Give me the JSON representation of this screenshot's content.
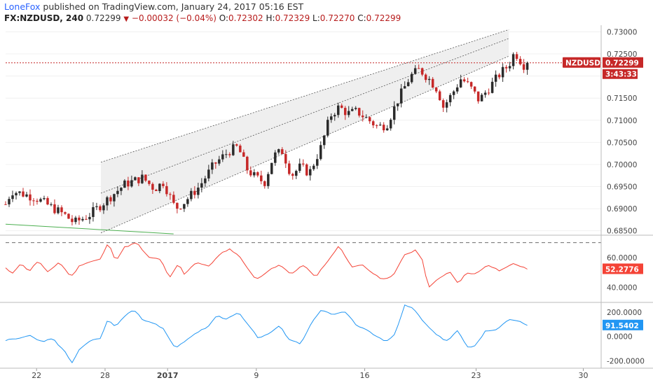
{
  "header": {
    "author": "LoneFox",
    "published_text": "published on TradingView.com, January 24, 2017 05:16 EST",
    "symbol": "FX:NZDUSD, 240",
    "last": "0.72299",
    "change": "−0.00032 (−0.04%)",
    "o_label": "O:",
    "o": "0.72302",
    "h_label": "H:",
    "h": "0.72329",
    "l_label": "L:",
    "l": "0.72270",
    "c_label": "C:",
    "c": "0.72299"
  },
  "colors": {
    "up": "#2b2b2b",
    "down": "#c62828",
    "rsi": "#f44336",
    "cci": "#2196f3",
    "tag_red": "#c62828",
    "tag_blue": "#2196f3",
    "channel_fill": "#efefef"
  },
  "chart_data": [
    {
      "type": "candlestick",
      "symbol": "NZDUSD",
      "ylim": [
        0.684,
        0.7315
      ],
      "yticks": [
        "0.73000",
        "0.72500",
        "0.72000",
        "0.71500",
        "0.71000",
        "0.70500",
        "0.70000",
        "0.69500",
        "0.69000",
        "0.68500"
      ],
      "ytick_values": [
        0.73,
        0.725,
        0.72,
        0.715,
        0.71,
        0.705,
        0.7,
        0.695,
        0.69,
        0.685
      ],
      "xticks": [
        {
          "label": "22",
          "x": 0.052
        },
        {
          "label": "28",
          "x": 0.167
        },
        {
          "label": "2017",
          "x": 0.272
        },
        {
          "label": "9",
          "x": 0.421
        },
        {
          "label": "16",
          "x": 0.603
        },
        {
          "label": "23",
          "x": 0.79
        },
        {
          "label": "30",
          "x": 0.97
        }
      ],
      "last_price": 0.72299,
      "price_label": "NZDUSD",
      "price_tag": "0.72299",
      "countdown": "3:43:33",
      "channel": {
        "x1": 0.16,
        "x2": 0.845,
        "lower": [
          0.6845,
          0.7245
        ],
        "mid": [
          0.6935,
          0.7285
        ],
        "upper": [
          0.7005,
          0.7305
        ]
      },
      "trendline": [
        [
          0.0,
          0.6865
        ],
        [
          0.282,
          0.6843
        ]
      ],
      "anchors": [
        [
          0,
          0.691
        ],
        [
          0.01,
          0.694
        ],
        [
          0.025,
          0.6935
        ],
        [
          0.05,
          0.6925
        ],
        [
          0.075,
          0.6905
        ],
        [
          0.1,
          0.6885
        ],
        [
          0.115,
          0.6868
        ],
        [
          0.14,
          0.6885
        ],
        [
          0.17,
          0.692
        ],
        [
          0.2,
          0.6955
        ],
        [
          0.23,
          0.697
        ],
        [
          0.25,
          0.6945
        ],
        [
          0.265,
          0.696
        ],
        [
          0.285,
          0.69
        ],
        [
          0.3,
          0.6915
        ],
        [
          0.325,
          0.695
        ],
        [
          0.35,
          0.7
        ],
        [
          0.375,
          0.703
        ],
        [
          0.39,
          0.704
        ],
        [
          0.405,
          0.699
        ],
        [
          0.42,
          0.697
        ],
        [
          0.435,
          0.696
        ],
        [
          0.45,
          0.702
        ],
        [
          0.465,
          0.703
        ],
        [
          0.48,
          0.6975
        ],
        [
          0.495,
          0.6995
        ],
        [
          0.51,
          0.698
        ],
        [
          0.53,
          0.704
        ],
        [
          0.545,
          0.711
        ],
        [
          0.56,
          0.713
        ],
        [
          0.575,
          0.7115
        ],
        [
          0.59,
          0.712
        ],
        [
          0.605,
          0.7105
        ],
        [
          0.625,
          0.7085
        ],
        [
          0.64,
          0.709
        ],
        [
          0.66,
          0.715
        ],
        [
          0.68,
          0.72
        ],
        [
          0.695,
          0.7215
        ],
        [
          0.71,
          0.7195
        ],
        [
          0.725,
          0.717
        ],
        [
          0.735,
          0.713
        ],
        [
          0.75,
          0.716
        ],
        [
          0.765,
          0.7195
        ],
        [
          0.78,
          0.7175
        ],
        [
          0.795,
          0.7145
        ],
        [
          0.81,
          0.717
        ],
        [
          0.83,
          0.7205
        ],
        [
          0.845,
          0.7225
        ],
        [
          0.855,
          0.7255
        ],
        [
          0.862,
          0.724
        ],
        [
          0.87,
          0.7225
        ],
        [
          0.876,
          0.723
        ]
      ]
    },
    {
      "type": "line",
      "name": "RSI",
      "ylim": [
        30,
        75
      ],
      "yticks": [
        "60.0000",
        "40.0000"
      ],
      "ytick_values": [
        60,
        40
      ],
      "levels": [
        70,
        30
      ],
      "last_value": 52.2776,
      "tag": "52.2776",
      "anchors": [
        [
          0,
          53
        ],
        [
          0.01,
          49
        ],
        [
          0.025,
          56
        ],
        [
          0.04,
          51
        ],
        [
          0.055,
          58
        ],
        [
          0.07,
          50
        ],
        [
          0.09,
          57
        ],
        [
          0.11,
          47
        ],
        [
          0.125,
          55
        ],
        [
          0.14,
          57
        ],
        [
          0.16,
          59
        ],
        [
          0.172,
          70
        ],
        [
          0.185,
          58
        ],
        [
          0.2,
          67
        ],
        [
          0.22,
          70
        ],
        [
          0.24,
          60
        ],
        [
          0.26,
          59
        ],
        [
          0.275,
          46
        ],
        [
          0.29,
          56
        ],
        [
          0.3,
          49
        ],
        [
          0.32,
          57
        ],
        [
          0.34,
          54
        ],
        [
          0.36,
          62
        ],
        [
          0.375,
          66
        ],
        [
          0.39,
          62
        ],
        [
          0.405,
          54
        ],
        [
          0.42,
          45
        ],
        [
          0.44,
          51
        ],
        [
          0.46,
          55
        ],
        [
          0.48,
          49
        ],
        [
          0.5,
          55
        ],
        [
          0.52,
          47
        ],
        [
          0.54,
          57
        ],
        [
          0.56,
          68
        ],
        [
          0.58,
          54
        ],
        [
          0.6,
          55
        ],
        [
          0.615,
          50
        ],
        [
          0.63,
          46
        ],
        [
          0.65,
          47
        ],
        [
          0.67,
          62
        ],
        [
          0.69,
          65
        ],
        [
          0.7,
          58
        ],
        [
          0.71,
          40
        ],
        [
          0.725,
          45
        ],
        [
          0.745,
          51
        ],
        [
          0.76,
          43
        ],
        [
          0.775,
          50
        ],
        [
          0.79,
          49
        ],
        [
          0.81,
          55
        ],
        [
          0.83,
          51
        ],
        [
          0.85,
          56
        ],
        [
          0.876,
          53
        ]
      ]
    },
    {
      "type": "line",
      "name": "CCI",
      "ylim": [
        -260,
        280
      ],
      "yticks": [
        "200.0000",
        "0.0000",
        "-200.0000"
      ],
      "ytick_values": [
        200,
        0,
        -200
      ],
      "last_value": 91.5402,
      "tag": "91.5402",
      "anchors": [
        [
          0,
          -30
        ],
        [
          0.02,
          -20
        ],
        [
          0.04,
          10
        ],
        [
          0.06,
          -40
        ],
        [
          0.08,
          -20
        ],
        [
          0.1,
          -130
        ],
        [
          0.112,
          -220
        ],
        [
          0.125,
          -100
        ],
        [
          0.14,
          -40
        ],
        [
          0.16,
          -10
        ],
        [
          0.172,
          140
        ],
        [
          0.185,
          80
        ],
        [
          0.2,
          170
        ],
        [
          0.215,
          220
        ],
        [
          0.23,
          140
        ],
        [
          0.245,
          120
        ],
        [
          0.265,
          60
        ],
        [
          0.285,
          -100
        ],
        [
          0.3,
          -40
        ],
        [
          0.32,
          30
        ],
        [
          0.34,
          80
        ],
        [
          0.355,
          170
        ],
        [
          0.37,
          140
        ],
        [
          0.39,
          200
        ],
        [
          0.41,
          80
        ],
        [
          0.425,
          -20
        ],
        [
          0.44,
          20
        ],
        [
          0.46,
          90
        ],
        [
          0.475,
          -20
        ],
        [
          0.495,
          -60
        ],
        [
          0.515,
          120
        ],
        [
          0.53,
          220
        ],
        [
          0.55,
          180
        ],
        [
          0.57,
          200
        ],
        [
          0.59,
          90
        ],
        [
          0.61,
          50
        ],
        [
          0.625,
          -10
        ],
        [
          0.64,
          -40
        ],
        [
          0.655,
          30
        ],
        [
          0.67,
          260
        ],
        [
          0.685,
          230
        ],
        [
          0.7,
          130
        ],
        [
          0.72,
          30
        ],
        [
          0.74,
          -40
        ],
        [
          0.76,
          50
        ],
        [
          0.775,
          -90
        ],
        [
          0.79,
          -70
        ],
        [
          0.805,
          40
        ],
        [
          0.825,
          60
        ],
        [
          0.845,
          140
        ],
        [
          0.86,
          130
        ],
        [
          0.876,
          95
        ]
      ]
    }
  ]
}
